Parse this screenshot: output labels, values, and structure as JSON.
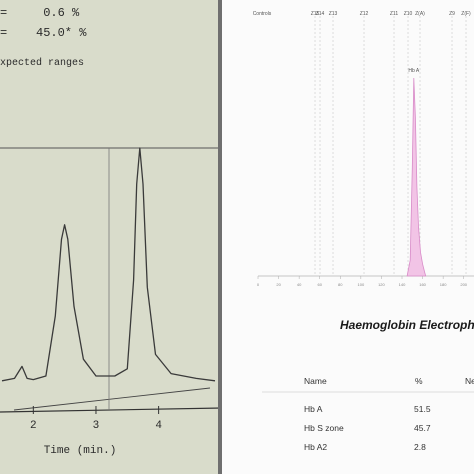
{
  "left_report": {
    "line1": "=     0.6 %",
    "line2": "=    45.0* %",
    "line3": "xpected ranges",
    "xlabel": "Time (min.)"
  },
  "right_report": {
    "title": "Haemoglobin Electrophe",
    "table": {
      "headers": [
        "Name",
        "%",
        "Ne"
      ],
      "rows": [
        {
          "name": "Hb A",
          "pct": "51.5"
        },
        {
          "name": "Hb S zone",
          "pct": "45.7"
        },
        {
          "name": "Hb A2",
          "pct": "2.8"
        }
      ]
    }
  },
  "chart_data": [
    {
      "type": "line",
      "title": "",
      "xlabel": "Time (min.)",
      "ylabel": "",
      "x_ticks": [
        "2",
        "3",
        "4"
      ],
      "xlim": [
        1.5,
        4.9
      ],
      "ylim": [
        0,
        100
      ],
      "series": [
        {
          "x": [
            1.5,
            1.7,
            1.82,
            1.9,
            2.0,
            2.2,
            2.35,
            2.45,
            2.5,
            2.55,
            2.65,
            2.8,
            3.0,
            3.3,
            3.5,
            3.6,
            3.65,
            3.7,
            3.75,
            3.82,
            3.95,
            4.2,
            4.6,
            4.9
          ],
          "y": [
            3,
            4,
            9,
            4,
            3.5,
            5,
            30,
            62,
            68,
            62,
            34,
            12,
            5,
            5,
            8,
            45,
            85,
            100,
            85,
            42,
            14,
            6,
            4,
            3
          ]
        }
      ]
    },
    {
      "type": "area",
      "title": "",
      "xlabel": "",
      "ylabel": "",
      "x_ticks": [
        "0",
        "20",
        "40",
        "60",
        "80",
        "100",
        "120",
        "140",
        "160",
        "180",
        "200"
      ],
      "zones": [
        "Controls",
        "Z15",
        "Z14",
        "Z13",
        "Z12",
        "Z11",
        "Z10",
        "Z(A)",
        "Z9",
        "Z(F)"
      ],
      "peak_label": "Hb A",
      "xlim": [
        0,
        210
      ],
      "ylim": [
        0,
        100
      ],
      "series": [
        {
          "name": "Hb A",
          "x": [
            145,
            148,
            150,
            151.5,
            153,
            154.5,
            156,
            158,
            160,
            162,
            163
          ],
          "y": [
            0,
            8,
            55,
            100,
            80,
            45,
            25,
            12,
            6,
            2,
            0
          ]
        }
      ]
    }
  ]
}
